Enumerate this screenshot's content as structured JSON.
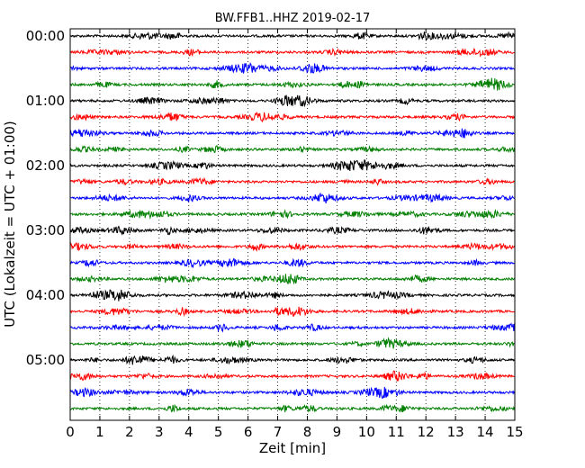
{
  "chart_data": {
    "type": "line",
    "title": "BW.FFB1..HHZ 2019-02-17",
    "xlabel": "Zeit  [min]",
    "ylabel": "UTC (Lokalzeit = UTC + 01:00)",
    "xlim": [
      0,
      15
    ],
    "x_ticks": [
      "0",
      "1",
      "2",
      "3",
      "4",
      "5",
      "6",
      "7",
      "8",
      "9",
      "10",
      "11",
      "12",
      "13",
      "14",
      "15"
    ],
    "y_tick_labels": [
      "00:00",
      "01:00",
      "02:00",
      "03:00",
      "04:00",
      "05:00"
    ],
    "trace_interval_min": 15,
    "trace_count": 24,
    "trace_colors": [
      "#000000",
      "#ff0000",
      "#0000ff",
      "#007f00"
    ],
    "grid": "vertical dotted at each minute",
    "series": [
      {
        "start": "00:00",
        "color": "#000000"
      },
      {
        "start": "00:15",
        "color": "#ff0000"
      },
      {
        "start": "00:30",
        "color": "#0000ff"
      },
      {
        "start": "00:45",
        "color": "#007f00"
      },
      {
        "start": "01:00",
        "color": "#000000"
      },
      {
        "start": "01:15",
        "color": "#ff0000"
      },
      {
        "start": "01:30",
        "color": "#0000ff"
      },
      {
        "start": "01:45",
        "color": "#007f00"
      },
      {
        "start": "02:00",
        "color": "#000000"
      },
      {
        "start": "02:15",
        "color": "#ff0000"
      },
      {
        "start": "02:30",
        "color": "#0000ff"
      },
      {
        "start": "02:45",
        "color": "#007f00"
      },
      {
        "start": "03:00",
        "color": "#000000"
      },
      {
        "start": "03:15",
        "color": "#ff0000"
      },
      {
        "start": "03:30",
        "color": "#0000ff"
      },
      {
        "start": "03:45",
        "color": "#007f00"
      },
      {
        "start": "04:00",
        "color": "#000000"
      },
      {
        "start": "04:15",
        "color": "#ff0000"
      },
      {
        "start": "04:30",
        "color": "#0000ff"
      },
      {
        "start": "04:45",
        "color": "#007f00"
      },
      {
        "start": "05:00",
        "color": "#000000"
      },
      {
        "start": "05:15",
        "color": "#ff0000"
      },
      {
        "start": "05:30",
        "color": "#0000ff"
      },
      {
        "start": "05:45",
        "color": "#007f00"
      }
    ]
  }
}
